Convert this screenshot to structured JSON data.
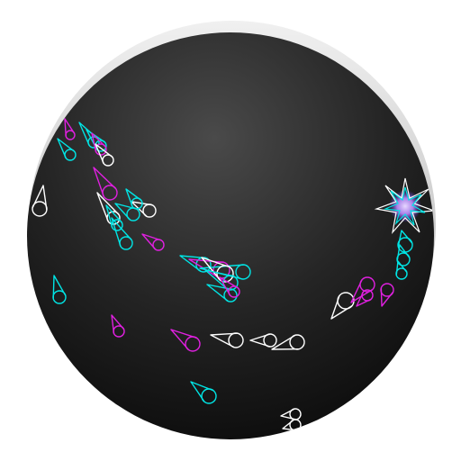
{
  "app_icon": {
    "name": "comet-swarm-launcher-icon",
    "colors": {
      "background": "#ffffff",
      "sphere_center": "#4a4a4a",
      "sphere_edge": "#0c0c0c",
      "rim_highlight": "#e6e6e6",
      "rim_shadow": "#b0b0b0",
      "burst_core": "#b98cff"
    },
    "palette": [
      "#ffffff",
      "#00e5e5",
      "#e020e0"
    ],
    "palette_names": [
      "white",
      "cyan",
      "magenta"
    ],
    "cluster_names": [
      "upper-left-swarm",
      "left-edge-swarm",
      "center-swarm",
      "lower-left-stray",
      "lower-center-row",
      "bottom-pair",
      "right-cluster",
      "right-starburst"
    ]
  }
}
